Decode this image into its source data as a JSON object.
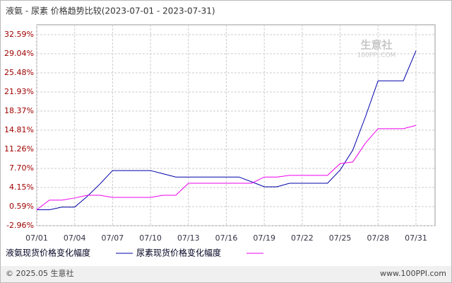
{
  "chart_data": {
    "type": "line",
    "title": "液氨 - 尿素 价格趋势比较(2023-07-01 - 2023-07-31)",
    "categories": [
      "07/01",
      null,
      null,
      "07/04",
      null,
      null,
      "07/07",
      null,
      null,
      "07/10",
      null,
      null,
      "07/13",
      null,
      null,
      "07/16",
      null,
      null,
      "07/19",
      null,
      null,
      "07/22",
      null,
      null,
      "07/25",
      null,
      null,
      "07/28",
      null,
      null,
      "07/31"
    ],
    "series": [
      {
        "name": "液氨现货价格变化幅度",
        "color": "#0000aa",
        "values": [
          0,
          0,
          0.5,
          0.5,
          2.5,
          4.8,
          7.3,
          7.3,
          7.3,
          7.3,
          6.7,
          6.1,
          6.1,
          6.1,
          6.1,
          6.1,
          6.1,
          5.2,
          4.28,
          4.28,
          4.94,
          4.94,
          4.94,
          4.94,
          7.4,
          11.1,
          17.3,
          24.0,
          24.0,
          24.0,
          29.6
        ]
      },
      {
        "name": "尿素现货价格变化幅度",
        "color": "#ee00ee",
        "values": [
          0,
          1.8,
          1.8,
          2.2,
          2.7,
          2.7,
          2.3,
          2.3,
          2.3,
          2.3,
          2.7,
          2.7,
          4.94,
          4.94,
          4.94,
          4.94,
          4.94,
          4.94,
          6.1,
          6.1,
          6.4,
          6.4,
          6.4,
          6.4,
          8.6,
          8.9,
          12.4,
          15.1,
          15.1,
          15.1,
          15.7
        ]
      }
    ],
    "ylim": [
      -2.96,
      32.59
    ],
    "yticks": [
      {
        "value": -2.96,
        "label": "-2.96%"
      },
      {
        "value": 0.59,
        "label": "0.59%"
      },
      {
        "value": 4.15,
        "label": "4.15%"
      },
      {
        "value": 7.7,
        "label": "7.70%"
      },
      {
        "value": 11.26,
        "label": "11.26%"
      },
      {
        "value": 14.81,
        "label": "14.81%"
      },
      {
        "value": 18.37,
        "label": "18.37%"
      },
      {
        "value": 21.93,
        "label": "21.93%"
      },
      {
        "value": 25.48,
        "label": "25.48%"
      },
      {
        "value": 29.04,
        "label": "29.04%"
      },
      {
        "value": 32.59,
        "label": "32.59%"
      }
    ],
    "grid": true,
    "watermark": [
      "生意社",
      "100PPI.COM"
    ],
    "footer": {
      "left": "© 2025.05 生意社",
      "right": "www.100PPI.com"
    }
  }
}
